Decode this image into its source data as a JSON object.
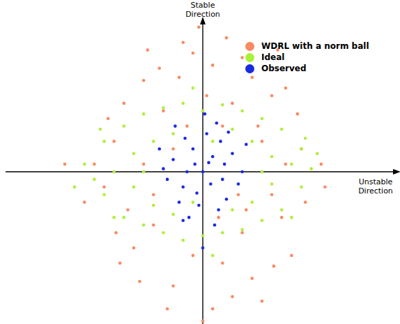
{
  "chart_data": {
    "type": "scatter",
    "x_label": "Unstable Direction",
    "y_label": "Stable Direction",
    "xlim": [
      -1,
      1
    ],
    "ylim": [
      -1,
      1
    ],
    "tick_labels": false,
    "grid": false,
    "legend": "upper right",
    "series": [
      {
        "name": "WDRL with a norm ball",
        "color": "#fa8a62",
        "values": [
          [
            -0.45,
            0.2
          ],
          [
            -0.3,
            0.6
          ],
          [
            -0.1,
            0.85
          ],
          [
            0.05,
            0.7
          ],
          [
            0.2,
            0.75
          ],
          [
            0.35,
            0.5
          ],
          [
            0.5,
            0.15
          ],
          [
            0.4,
            -0.3
          ],
          [
            0.25,
            -0.7
          ],
          [
            0.05,
            -0.9
          ],
          [
            -0.15,
            -0.75
          ],
          [
            -0.35,
            -0.5
          ],
          [
            -0.5,
            -0.1
          ],
          [
            -0.2,
            0.4
          ],
          [
            0.15,
            0.45
          ],
          [
            0.3,
            0.2
          ],
          [
            0.2,
            -0.4
          ],
          [
            -0.25,
            -0.35
          ],
          [
            -0.05,
            -0.55
          ],
          [
            0.1,
            -0.6
          ],
          [
            -0.4,
            0.45
          ],
          [
            0.42,
            0.55
          ],
          [
            0.45,
            -0.55
          ],
          [
            -0.42,
            -0.6
          ],
          [
            -0.12,
            0.62
          ],
          [
            0.12,
            0.88
          ],
          [
            -0.02,
            0.95
          ],
          [
            0.0,
            -0.98
          ],
          [
            0.3,
            -0.85
          ],
          [
            -0.28,
            0.8
          ],
          [
            0.28,
            0.3
          ],
          [
            -0.3,
            0.05
          ],
          [
            0.52,
            -0.2
          ],
          [
            -0.55,
            0.05
          ],
          [
            0.35,
            -0.15
          ],
          [
            -0.08,
            0.3
          ],
          [
            0.08,
            -0.3
          ],
          [
            -0.18,
            -0.9
          ],
          [
            0.18,
            -0.15
          ],
          [
            -0.38,
            -0.25
          ],
          [
            0.38,
            0.8
          ],
          [
            -0.22,
            0.68
          ],
          [
            0.25,
            0.62
          ],
          [
            -0.48,
            0.35
          ],
          [
            0.48,
            0.38
          ],
          [
            -0.32,
            -0.72
          ],
          [
            0.36,
            -0.62
          ],
          [
            0.02,
            0.5
          ],
          [
            -0.6,
            -0.2
          ],
          [
            0.6,
            0.05
          ],
          [
            0.15,
            -0.82
          ],
          [
            -0.05,
            0.78
          ],
          [
            0.1,
            0.3
          ],
          [
            -0.15,
            0.15
          ],
          [
            0.22,
            -0.25
          ],
          [
            -0.25,
            -0.15
          ],
          [
            -0.7,
            0.05
          ],
          [
            0.62,
            -0.1
          ],
          [
            0.42,
            0.05
          ],
          [
            -0.44,
            -0.4
          ]
        ]
      },
      {
        "name": "Ideal",
        "color": "#adf03a",
        "values": [
          [
            -0.6,
            0.05
          ],
          [
            -0.5,
            0.2
          ],
          [
            -0.5,
            -0.15
          ],
          [
            -0.4,
            0.3
          ],
          [
            -0.4,
            -0.3
          ],
          [
            -0.3,
            0.38
          ],
          [
            -0.3,
            -0.35
          ],
          [
            -0.2,
            0.42
          ],
          [
            -0.2,
            -0.4
          ],
          [
            -0.1,
            0.45
          ],
          [
            -0.1,
            -0.45
          ],
          [
            0,
            0.4
          ],
          [
            0,
            -0.42
          ],
          [
            0.1,
            0.44
          ],
          [
            0.1,
            -0.4
          ],
          [
            0.2,
            0.4
          ],
          [
            0.2,
            -0.38
          ],
          [
            0.3,
            0.35
          ],
          [
            0.3,
            -0.32
          ],
          [
            0.4,
            0.28
          ],
          [
            0.4,
            -0.25
          ],
          [
            0.5,
            0.15
          ],
          [
            0.5,
            -0.1
          ],
          [
            0.55,
            0.02
          ],
          [
            -0.45,
            0.0
          ],
          [
            -0.35,
            0.12
          ],
          [
            -0.35,
            -0.1
          ],
          [
            0.35,
            0.1
          ],
          [
            0.35,
            -0.08
          ],
          [
            0.45,
            0.05
          ],
          [
            -0.25,
            0.2
          ],
          [
            -0.25,
            -0.22
          ],
          [
            0.25,
            0.2
          ],
          [
            0.25,
            -0.2
          ],
          [
            -0.15,
            0.25
          ],
          [
            0.15,
            -0.25
          ],
          [
            0.15,
            0.28
          ],
          [
            -0.15,
            -0.28
          ],
          [
            -0.55,
            -0.05
          ],
          [
            0.52,
            0.22
          ],
          [
            -0.52,
            0.28
          ],
          [
            0.45,
            -0.3
          ],
          [
            -0.45,
            -0.3
          ],
          [
            0.05,
            0.2
          ],
          [
            -0.05,
            -0.2
          ],
          [
            -0.65,
            -0.1
          ],
          [
            0.58,
            0.12
          ],
          [
            0.3,
            0.0
          ],
          [
            -0.3,
            0.0
          ],
          [
            0.05,
            -0.55
          ],
          [
            -0.05,
            0.55
          ]
        ]
      },
      {
        "name": "Observed",
        "color": "#1a2ae0",
        "values": [
          [
            0,
            0
          ],
          [
            0.05,
            0.1
          ],
          [
            -0.05,
            0.15
          ],
          [
            0.1,
            -0.05
          ],
          [
            -0.1,
            -0.1
          ],
          [
            0.02,
            0.25
          ],
          [
            -0.02,
            -0.22
          ],
          [
            0.15,
            0.12
          ],
          [
            -0.15,
            0.08
          ],
          [
            0.12,
            -0.18
          ],
          [
            -0.12,
            -0.2
          ],
          [
            0.07,
            0.32
          ],
          [
            -0.07,
            -0.3
          ],
          [
            0.2,
            0.0
          ],
          [
            -0.2,
            0.02
          ],
          [
            0.04,
            -0.08
          ],
          [
            -0.04,
            0.05
          ],
          [
            0.09,
            0.2
          ],
          [
            -0.09,
            0.22
          ],
          [
            0.18,
            -0.08
          ],
          [
            -0.18,
            -0.05
          ],
          [
            0.01,
            0.38
          ],
          [
            0.06,
            -0.35
          ],
          [
            -0.14,
            0.3
          ],
          [
            0.13,
            0.26
          ],
          [
            -0.03,
            -0.14
          ],
          [
            0.03,
            0.06
          ],
          [
            -0.22,
            0.15
          ],
          [
            0.22,
            0.18
          ],
          [
            -0.1,
            -0.32
          ],
          [
            0.11,
            0.05
          ],
          [
            -0.08,
            0.0
          ],
          [
            0.0,
            -0.5
          ],
          [
            0.08,
            -0.25
          ]
        ]
      }
    ]
  }
}
